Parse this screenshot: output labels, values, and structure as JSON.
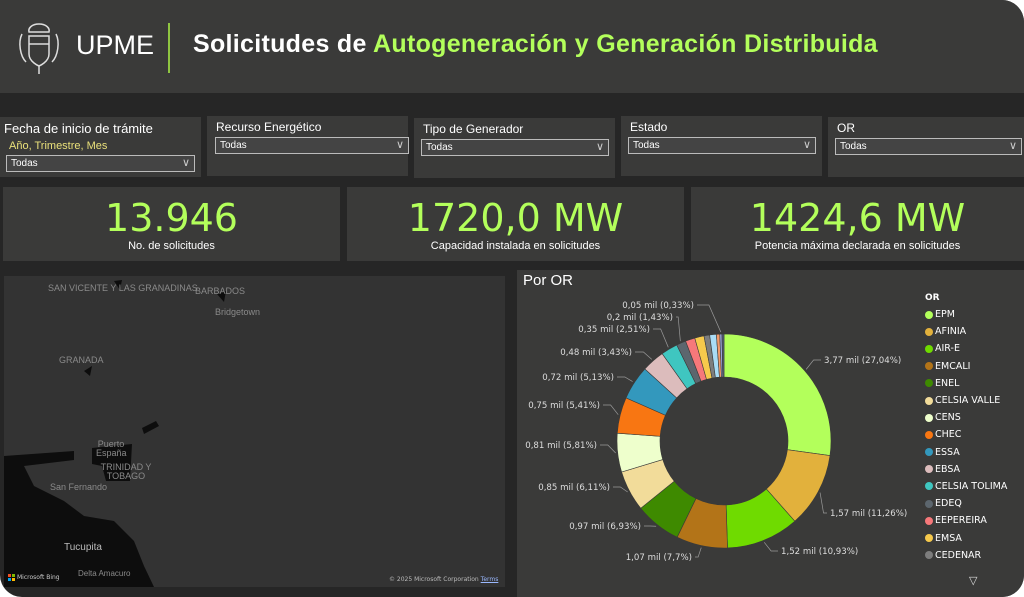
{
  "header": {
    "brand": "UPME",
    "title_white": "Solicitudes de ",
    "title_green": "Autogeneración y Generación Distribuida",
    "accent": "#b3ff5b",
    "logo": "Escudo de Colombia"
  },
  "filters": [
    {
      "label": "Fecha de inicio de trámite",
      "sublabel": "Año, Trimestre, Mes",
      "value": "Todas"
    },
    {
      "label": "Recurso Energético",
      "value": "Todas"
    },
    {
      "label": "Tipo de Generador",
      "value": "Todas"
    },
    {
      "label": "Estado",
      "value": "Todas"
    },
    {
      "label": "OR",
      "value": "Todas"
    }
  ],
  "cards": [
    {
      "value": "13.946",
      "caption": "No. de solicitudes"
    },
    {
      "value": "1720,0 MW",
      "caption": "Capacidad instalada en solicitudes"
    },
    {
      "value": "1424,6 MW",
      "caption": "Potencia máxima declarada en solicitudes"
    }
  ],
  "map": {
    "labels": [
      "SAN VICENTE Y LAS GRANADINAS",
      "BARBADOS",
      "Bridgetown",
      "GRANADA",
      "Puerto España",
      "TRINIDAD Y TOBAGO",
      "San Fernando",
      "Tucupita",
      "Delta Amacuro"
    ],
    "attribution": "Microsoft Bing",
    "copyright": "© 2025 Microsoft Corporation",
    "terms": "Terms"
  },
  "chart_data": {
    "type": "pie",
    "title": "Por OR",
    "legend_title": "OR",
    "legend_placement": "right",
    "slices": [
      {
        "name": "EPM",
        "value": 3.77,
        "pct": 27.04,
        "label": "3,77 mil (27,04%)",
        "color": "#b3ff5b"
      },
      {
        "name": "AFINIA",
        "value": 1.57,
        "pct": 11.26,
        "label": "1,57 mil (11,26%)",
        "color": "#e2b13c"
      },
      {
        "name": "AIR-E",
        "value": 1.52,
        "pct": 10.93,
        "label": "1,52 mil (10,93%)",
        "color": "#6fdb00"
      },
      {
        "name": "EMCALI",
        "value": 1.07,
        "pct": 7.7,
        "label": "1,07 mil (7,7%)",
        "color": "#b37418"
      },
      {
        "name": "ENEL",
        "value": 0.97,
        "pct": 6.93,
        "label": "0,97 mil (6,93%)",
        "color": "#3e8a00"
      },
      {
        "name": "CELSIA VALLE",
        "value": 0.85,
        "pct": 6.11,
        "label": "0,85 mil (6,11%)",
        "color": "#f2dc9a"
      },
      {
        "name": "CENS",
        "value": 0.81,
        "pct": 5.81,
        "label": "0,81 mil (5,81%)",
        "color": "#eeffcc"
      },
      {
        "name": "CHEC",
        "value": 0.75,
        "pct": 5.41,
        "label": "0,75 mil (5,41%)",
        "color": "#f87612"
      },
      {
        "name": "ESSA",
        "value": 0.72,
        "pct": 5.13,
        "label": "0,72 mil (5,13%)",
        "color": "#3398bd"
      },
      {
        "name": "EBSA",
        "value": 0.48,
        "pct": 3.43,
        "label": "0,48 mil (3,43%)",
        "color": "#dcbcbc"
      },
      {
        "name": "CELSIA TOLIMA",
        "value": 0.35,
        "pct": 2.51,
        "label": "0,35 mil (2,51%)",
        "color": "#3fc6c0"
      },
      {
        "name": "EDEQ",
        "value": 0.2,
        "pct": 1.43,
        "label": "0,2 mil (1,43%)",
        "color": "#5c666e"
      },
      {
        "name": "EEPEREIRA",
        "value": 0.2,
        "pct": 1.43,
        "label": "",
        "color": "#f6787a"
      },
      {
        "name": "EMSA",
        "value": 0.19,
        "pct": 1.4,
        "label": "",
        "color": "#f6c94c"
      },
      {
        "name": "CEDENAR",
        "value": 0.12,
        "pct": 0.85,
        "label": "",
        "color": "#7d7d7d"
      },
      {
        "name": "",
        "value": 0.14,
        "pct": 1.0,
        "label": "",
        "color": "#a9dcf5"
      },
      {
        "name": "",
        "value": 0.07,
        "pct": 0.5,
        "label": "",
        "color": "#f19a6c"
      },
      {
        "name": "",
        "value": 0.05,
        "pct": 0.33,
        "label": "0,05 mil (0,33%)",
        "color": "#9aa3d8"
      },
      {
        "name": "",
        "value": 0.04,
        "pct": 0.3,
        "label": "",
        "color": "#555c7a"
      }
    ]
  }
}
